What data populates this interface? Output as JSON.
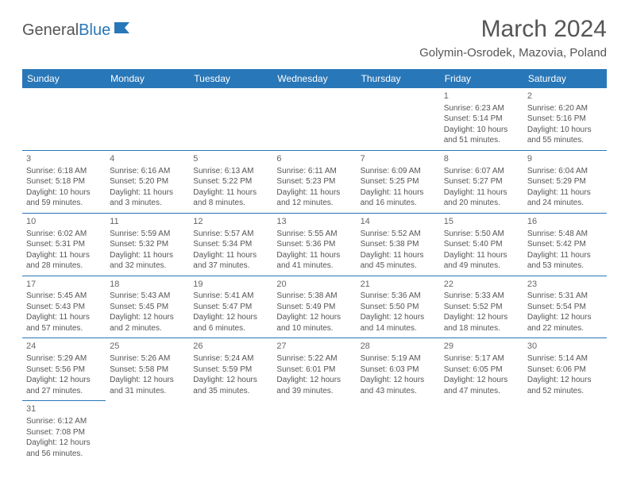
{
  "logo": {
    "word1": "General",
    "word2": "Blue",
    "icon_color": "#2877b8"
  },
  "title": "March 2024",
  "location": "Golymin-Osrodek, Mazovia, Poland",
  "colors": {
    "header_bg": "#2877b8",
    "header_text": "#ffffff",
    "border": "#2877b8",
    "text": "#555555",
    "background": "#ffffff"
  },
  "fonts": {
    "title_size": 30,
    "location_size": 15,
    "day_header_size": 12,
    "cell_size": 10
  },
  "day_headers": [
    "Sunday",
    "Monday",
    "Tuesday",
    "Wednesday",
    "Thursday",
    "Friday",
    "Saturday"
  ],
  "weeks": [
    [
      null,
      null,
      null,
      null,
      null,
      {
        "n": "1",
        "sr": "Sunrise: 6:23 AM",
        "ss": "Sunset: 5:14 PM",
        "d1": "Daylight: 10 hours",
        "d2": "and 51 minutes."
      },
      {
        "n": "2",
        "sr": "Sunrise: 6:20 AM",
        "ss": "Sunset: 5:16 PM",
        "d1": "Daylight: 10 hours",
        "d2": "and 55 minutes."
      }
    ],
    [
      {
        "n": "3",
        "sr": "Sunrise: 6:18 AM",
        "ss": "Sunset: 5:18 PM",
        "d1": "Daylight: 10 hours",
        "d2": "and 59 minutes."
      },
      {
        "n": "4",
        "sr": "Sunrise: 6:16 AM",
        "ss": "Sunset: 5:20 PM",
        "d1": "Daylight: 11 hours",
        "d2": "and 3 minutes."
      },
      {
        "n": "5",
        "sr": "Sunrise: 6:13 AM",
        "ss": "Sunset: 5:22 PM",
        "d1": "Daylight: 11 hours",
        "d2": "and 8 minutes."
      },
      {
        "n": "6",
        "sr": "Sunrise: 6:11 AM",
        "ss": "Sunset: 5:23 PM",
        "d1": "Daylight: 11 hours",
        "d2": "and 12 minutes."
      },
      {
        "n": "7",
        "sr": "Sunrise: 6:09 AM",
        "ss": "Sunset: 5:25 PM",
        "d1": "Daylight: 11 hours",
        "d2": "and 16 minutes."
      },
      {
        "n": "8",
        "sr": "Sunrise: 6:07 AM",
        "ss": "Sunset: 5:27 PM",
        "d1": "Daylight: 11 hours",
        "d2": "and 20 minutes."
      },
      {
        "n": "9",
        "sr": "Sunrise: 6:04 AM",
        "ss": "Sunset: 5:29 PM",
        "d1": "Daylight: 11 hours",
        "d2": "and 24 minutes."
      }
    ],
    [
      {
        "n": "10",
        "sr": "Sunrise: 6:02 AM",
        "ss": "Sunset: 5:31 PM",
        "d1": "Daylight: 11 hours",
        "d2": "and 28 minutes."
      },
      {
        "n": "11",
        "sr": "Sunrise: 5:59 AM",
        "ss": "Sunset: 5:32 PM",
        "d1": "Daylight: 11 hours",
        "d2": "and 32 minutes."
      },
      {
        "n": "12",
        "sr": "Sunrise: 5:57 AM",
        "ss": "Sunset: 5:34 PM",
        "d1": "Daylight: 11 hours",
        "d2": "and 37 minutes."
      },
      {
        "n": "13",
        "sr": "Sunrise: 5:55 AM",
        "ss": "Sunset: 5:36 PM",
        "d1": "Daylight: 11 hours",
        "d2": "and 41 minutes."
      },
      {
        "n": "14",
        "sr": "Sunrise: 5:52 AM",
        "ss": "Sunset: 5:38 PM",
        "d1": "Daylight: 11 hours",
        "d2": "and 45 minutes."
      },
      {
        "n": "15",
        "sr": "Sunrise: 5:50 AM",
        "ss": "Sunset: 5:40 PM",
        "d1": "Daylight: 11 hours",
        "d2": "and 49 minutes."
      },
      {
        "n": "16",
        "sr": "Sunrise: 5:48 AM",
        "ss": "Sunset: 5:42 PM",
        "d1": "Daylight: 11 hours",
        "d2": "and 53 minutes."
      }
    ],
    [
      {
        "n": "17",
        "sr": "Sunrise: 5:45 AM",
        "ss": "Sunset: 5:43 PM",
        "d1": "Daylight: 11 hours",
        "d2": "and 57 minutes."
      },
      {
        "n": "18",
        "sr": "Sunrise: 5:43 AM",
        "ss": "Sunset: 5:45 PM",
        "d1": "Daylight: 12 hours",
        "d2": "and 2 minutes."
      },
      {
        "n": "19",
        "sr": "Sunrise: 5:41 AM",
        "ss": "Sunset: 5:47 PM",
        "d1": "Daylight: 12 hours",
        "d2": "and 6 minutes."
      },
      {
        "n": "20",
        "sr": "Sunrise: 5:38 AM",
        "ss": "Sunset: 5:49 PM",
        "d1": "Daylight: 12 hours",
        "d2": "and 10 minutes."
      },
      {
        "n": "21",
        "sr": "Sunrise: 5:36 AM",
        "ss": "Sunset: 5:50 PM",
        "d1": "Daylight: 12 hours",
        "d2": "and 14 minutes."
      },
      {
        "n": "22",
        "sr": "Sunrise: 5:33 AM",
        "ss": "Sunset: 5:52 PM",
        "d1": "Daylight: 12 hours",
        "d2": "and 18 minutes."
      },
      {
        "n": "23",
        "sr": "Sunrise: 5:31 AM",
        "ss": "Sunset: 5:54 PM",
        "d1": "Daylight: 12 hours",
        "d2": "and 22 minutes."
      }
    ],
    [
      {
        "n": "24",
        "sr": "Sunrise: 5:29 AM",
        "ss": "Sunset: 5:56 PM",
        "d1": "Daylight: 12 hours",
        "d2": "and 27 minutes."
      },
      {
        "n": "25",
        "sr": "Sunrise: 5:26 AM",
        "ss": "Sunset: 5:58 PM",
        "d1": "Daylight: 12 hours",
        "d2": "and 31 minutes."
      },
      {
        "n": "26",
        "sr": "Sunrise: 5:24 AM",
        "ss": "Sunset: 5:59 PM",
        "d1": "Daylight: 12 hours",
        "d2": "and 35 minutes."
      },
      {
        "n": "27",
        "sr": "Sunrise: 5:22 AM",
        "ss": "Sunset: 6:01 PM",
        "d1": "Daylight: 12 hours",
        "d2": "and 39 minutes."
      },
      {
        "n": "28",
        "sr": "Sunrise: 5:19 AM",
        "ss": "Sunset: 6:03 PM",
        "d1": "Daylight: 12 hours",
        "d2": "and 43 minutes."
      },
      {
        "n": "29",
        "sr": "Sunrise: 5:17 AM",
        "ss": "Sunset: 6:05 PM",
        "d1": "Daylight: 12 hours",
        "d2": "and 47 minutes."
      },
      {
        "n": "30",
        "sr": "Sunrise: 5:14 AM",
        "ss": "Sunset: 6:06 PM",
        "d1": "Daylight: 12 hours",
        "d2": "and 52 minutes."
      }
    ],
    [
      {
        "n": "31",
        "sr": "Sunrise: 6:12 AM",
        "ss": "Sunset: 7:08 PM",
        "d1": "Daylight: 12 hours",
        "d2": "and 56 minutes."
      },
      null,
      null,
      null,
      null,
      null,
      null
    ]
  ]
}
